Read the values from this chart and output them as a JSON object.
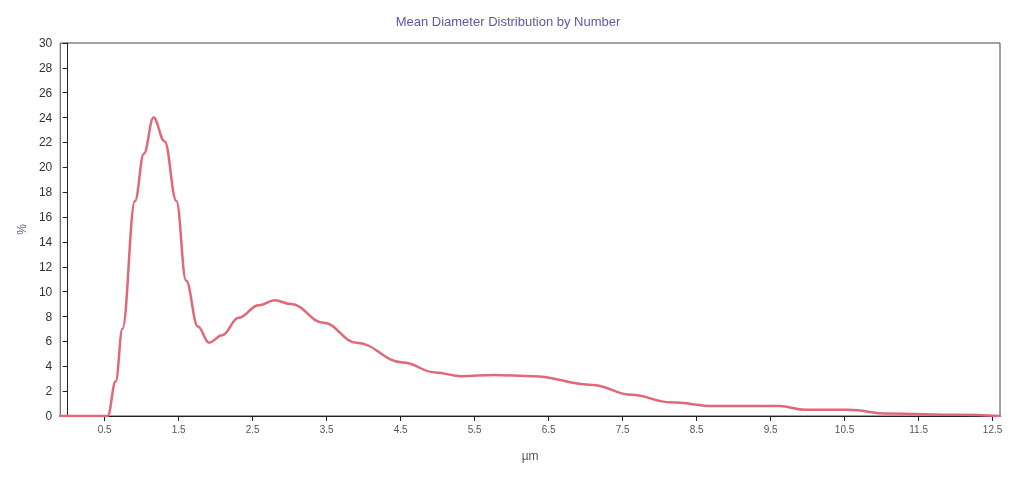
{
  "chart_data": {
    "type": "line",
    "title": "Mean Diameter Distribution by Number",
    "xlabel": "µm",
    "ylabel": "%",
    "x": [
      -0.1,
      0.5,
      0.54,
      0.65,
      0.74,
      0.91,
      1.03,
      1.16,
      1.31,
      1.47,
      1.6,
      1.76,
      1.91,
      2.09,
      2.31,
      2.58,
      2.8,
      3.02,
      3.46,
      3.9,
      4.53,
      4.97,
      5.32,
      5.76,
      6.29,
      7.09,
      7.62,
      8.15,
      8.74,
      9.62,
      9.97,
      10.55,
      11.08,
      12.06,
      12.6
    ],
    "series": [
      {
        "color": "#e06878",
        "values": [
          0,
          0,
          0,
          2.8,
          7.0,
          17.3,
          21.1,
          24.0,
          22.1,
          17.3,
          10.9,
          7.2,
          5.9,
          6.5,
          7.9,
          8.9,
          9.3,
          9.0,
          7.5,
          5.9,
          4.3,
          3.5,
          3.2,
          3.3,
          3.2,
          2.5,
          1.7,
          1.1,
          0.8,
          0.8,
          0.5,
          0.5,
          0.2,
          0.1,
          0
        ]
      }
    ],
    "xlim": [
      -0.1,
      12.6
    ],
    "xticks": [
      0.5,
      1.5,
      2.5,
      3.5,
      4.5,
      5.5,
      6.5,
      7.5,
      8.5,
      9.5,
      10.5,
      11.5,
      12.5
    ],
    "ylim": [
      0,
      30
    ],
    "yticks": [
      0,
      2,
      4,
      6,
      8,
      10,
      12,
      14,
      16,
      18,
      20,
      22,
      24,
      26,
      28,
      30
    ],
    "grid": false,
    "marker": "none",
    "line_style": "solid"
  }
}
